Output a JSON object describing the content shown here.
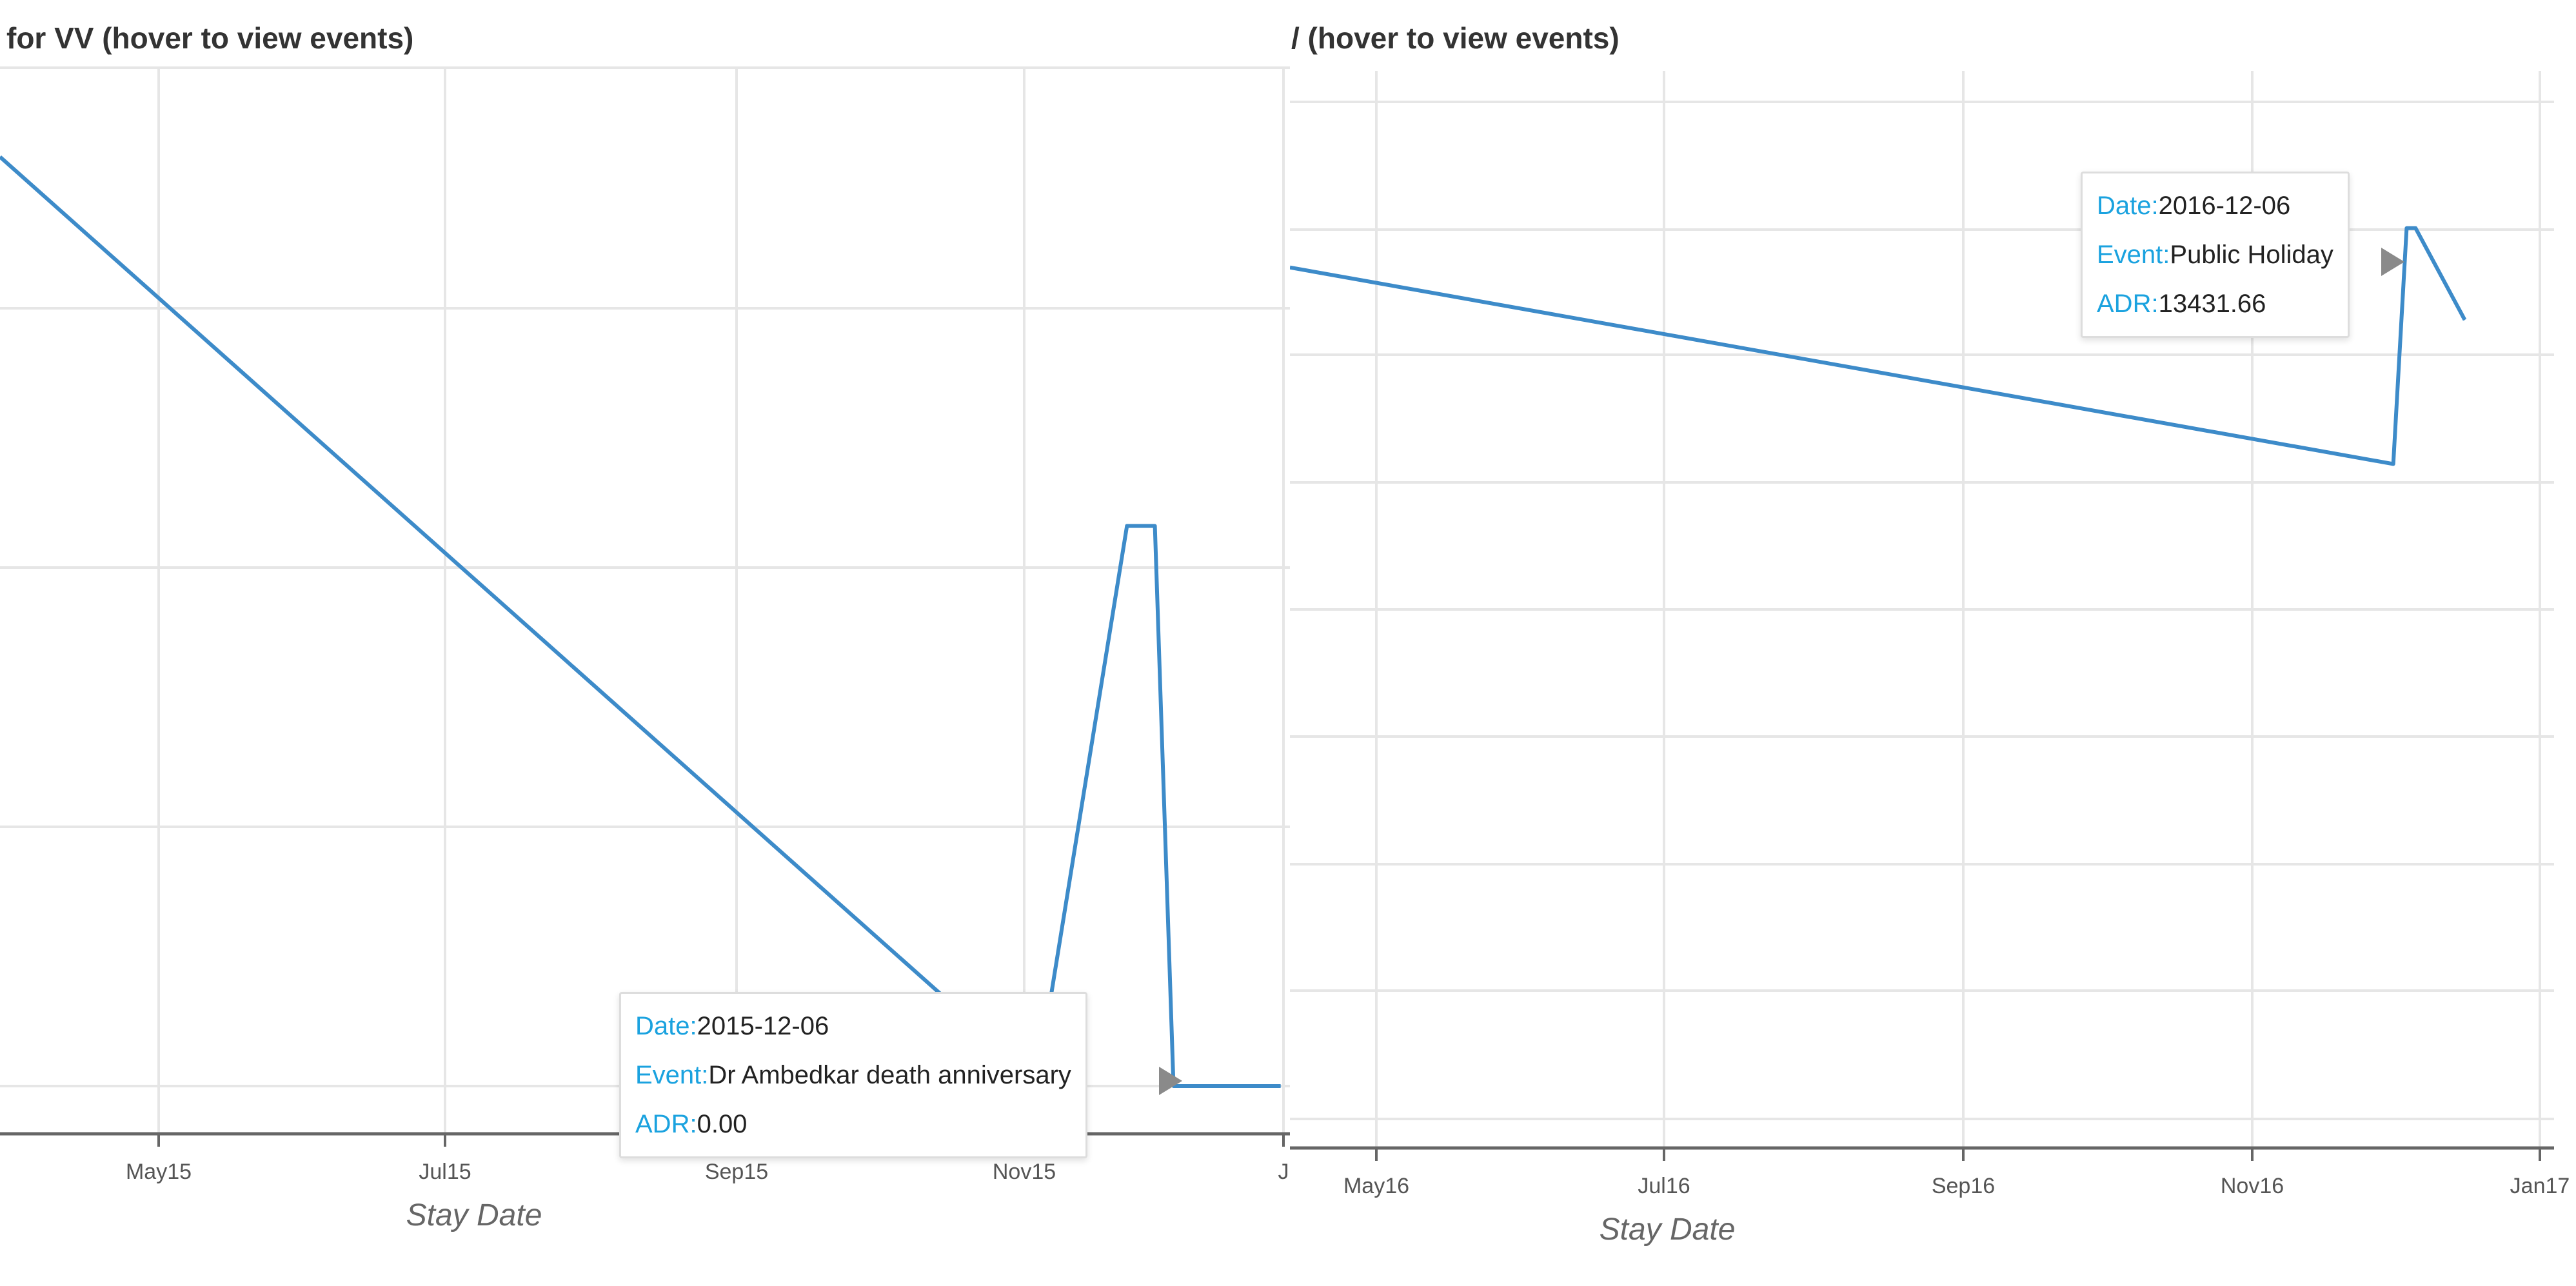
{
  "panels": [
    {
      "title": "for VV (hover to view events)",
      "xlabel": "Stay Date",
      "tooltip": {
        "date_label": "Date:",
        "date": "2015-12-06",
        "event_label": "Event:",
        "event": "Dr Ambedkar death anniversary",
        "adr_label": "ADR:",
        "adr": "0.00"
      }
    },
    {
      "title": "/ (hover to view events)",
      "xlabel": "Stay Date",
      "tooltip": {
        "date_label": "Date:",
        "date": "2016-12-06",
        "event_label": "Event:",
        "event": "Public Holiday",
        "adr_label": "ADR:",
        "adr": "13431.66"
      }
    }
  ],
  "colors": {
    "line": "#3d8bc9",
    "grid": "#e6e6e6",
    "axis": "#666666",
    "tooltip_label": "#1aa2df"
  },
  "chart_data": [
    {
      "type": "line",
      "title": "for VV (hover to view events)",
      "xlabel": "Stay Date",
      "ylabel": "",
      "x_ticks": [
        "May15",
        "Jul15",
        "Sep15",
        "Nov15",
        "J"
      ],
      "xlim": [
        "2015-03-31",
        "2016-01-02"
      ],
      "ylim": [
        0,
        4
      ],
      "series": [
        {
          "points": [
            {
              "x": "2015-03-31",
              "y": 3.65
            },
            {
              "x": "2015-11-01",
              "y": 0.15
            },
            {
              "x": "2015-11-09",
              "y": 0.05
            },
            {
              "x": "2015-11-28",
              "y": 2.2
            },
            {
              "x": "2015-12-04",
              "y": 2.2
            },
            {
              "x": "2015-12-08",
              "y": 0.0
            },
            {
              "x": "2015-12-31",
              "y": 0.0
            }
          ]
        }
      ],
      "grid": true
    },
    {
      "type": "line",
      "title": "/ (hover to view events)",
      "xlabel": "Stay Date",
      "ylabel": "",
      "x_ticks": [
        "May16",
        "Jul16",
        "Sep16",
        "Nov16",
        "Jan17"
      ],
      "xlim": [
        "2016-03-31",
        "2017-01-08"
      ],
      "ylim": [
        0,
        8
      ],
      "series": [
        {
          "points": [
            {
              "x": "2016-03-31",
              "y": 6.5
            },
            {
              "x": "2016-12-03",
              "y": 5.0
            },
            {
              "x": "2016-12-06",
              "y": 6.8
            },
            {
              "x": "2016-12-08",
              "y": 6.8
            },
            {
              "x": "2016-12-19",
              "y": 6.1
            }
          ]
        }
      ],
      "grid": true
    }
  ]
}
